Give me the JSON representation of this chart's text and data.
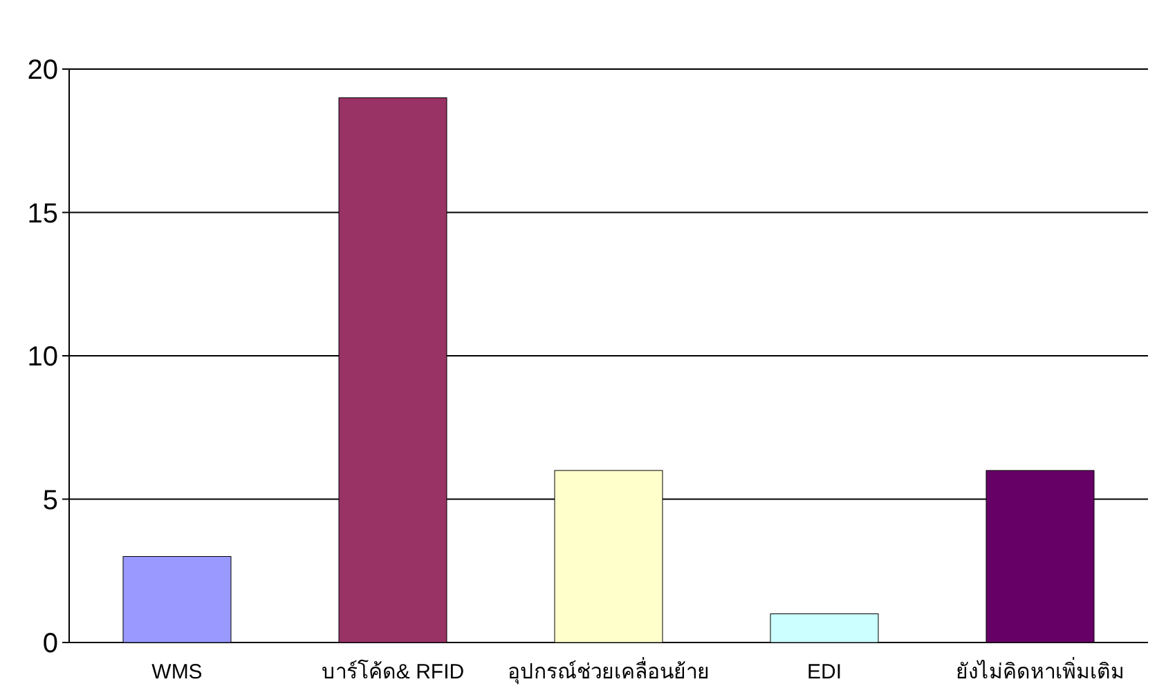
{
  "chart_data": {
    "type": "bar",
    "categories": [
      "WMS",
      "บาร์โค้ด& RFID",
      "อุปกรณ์ช่วยเคลื่อนย้าย",
      "EDI",
      "ยังไม่คิดหาเพิ่มเติม"
    ],
    "values": [
      3,
      19,
      6,
      1,
      6
    ],
    "colors": [
      "#9999ff",
      "#993366",
      "#ffffcc",
      "#ccffff",
      "#660066"
    ],
    "ylim": [
      0,
      20
    ],
    "yticks": [
      0,
      5,
      10,
      15,
      20
    ],
    "grid": "y"
  }
}
